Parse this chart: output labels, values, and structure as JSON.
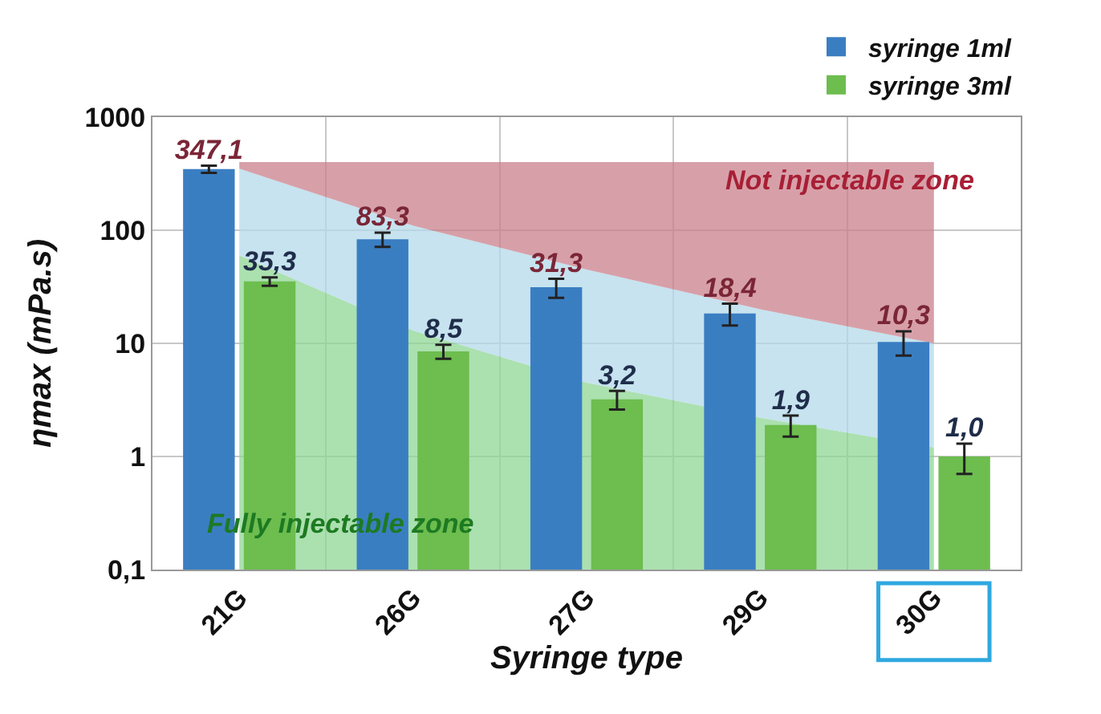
{
  "chart_data": {
    "type": "bar",
    "xlabel": "Syringe type",
    "ylabel": "ηmax (mPa.s)",
    "categories": [
      "21G",
      "26G",
      "27G",
      "29G",
      "30G"
    ],
    "series": [
      {
        "type": "area",
        "color": "#8fd694",
        "values": [
          60,
          13,
          4.5,
          2.2,
          1.2
        ]
      },
      {
        "type": "area",
        "color": "#b3d9ea",
        "values": [
          350,
          110,
          45,
          20,
          10
        ]
      },
      {
        "type": "area",
        "color": "#c9808c",
        "values": [
          400,
          400,
          400,
          400,
          400
        ]
      },
      {
        "name": "syringe 1ml",
        "color": "#3a7ec2",
        "values": [
          347.1,
          83.3,
          31.3,
          18.4,
          10.3
        ],
        "errors": [
          25,
          12,
          6,
          4,
          2.5
        ],
        "value_labels": [
          "347,1",
          "83,3",
          "31,3",
          "18,4",
          "10,3"
        ]
      },
      {
        "name": "syringe 3ml",
        "color": "#6dbd4f",
        "values": [
          35.3,
          8.5,
          3.2,
          1.9,
          1.0
        ],
        "errors": [
          3,
          1.2,
          0.6,
          0.4,
          0.3
        ],
        "value_labels": [
          "35,3",
          "8,5",
          "3,2",
          "1,9",
          "1,0"
        ]
      }
    ],
    "log": true,
    "ylim": [
      0.1,
      1000
    ],
    "yticks": [
      {
        "value": 0.1,
        "label": "0,1"
      },
      1,
      10,
      100,
      1000
    ],
    "grid": true,
    "legend": "top right",
    "annotations": [
      "Not injectable zone",
      "Fully injectable zone"
    ]
  }
}
